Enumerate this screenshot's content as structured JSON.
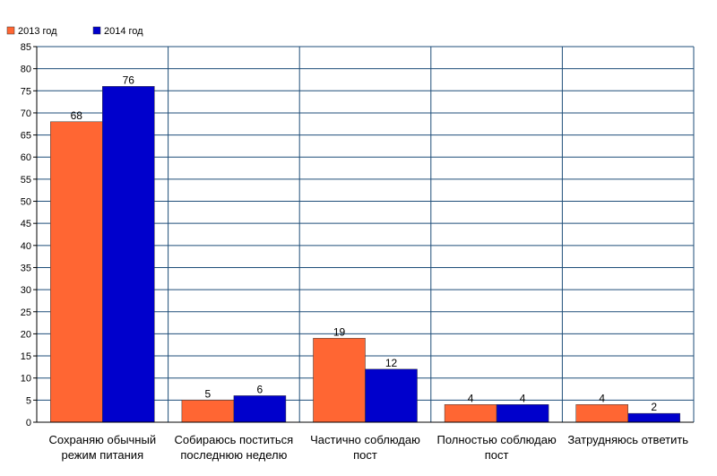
{
  "chart_data": {
    "type": "bar",
    "categories": [
      [
        "Сохраняю обычный",
        "режим питания"
      ],
      [
        "Собираюсь поститься",
        "последнюю неделю"
      ],
      [
        "Частично соблюдаю",
        "пост"
      ],
      [
        "Полностью соблюдаю",
        "пост"
      ],
      [
        "Затрудняюсь ответить"
      ]
    ],
    "series": [
      {
        "name": "2013 год",
        "color": "#ff6633",
        "values": [
          68,
          5,
          19,
          4,
          4
        ]
      },
      {
        "name": "2014 год",
        "color": "#0000cc",
        "values": [
          76,
          6,
          12,
          4,
          2
        ]
      }
    ],
    "ylim": [
      0,
      85
    ],
    "ytick_step": 5,
    "grid": true,
    "grid_color": "#1f4e79",
    "legend_position": "top-left",
    "data_labels": true
  }
}
